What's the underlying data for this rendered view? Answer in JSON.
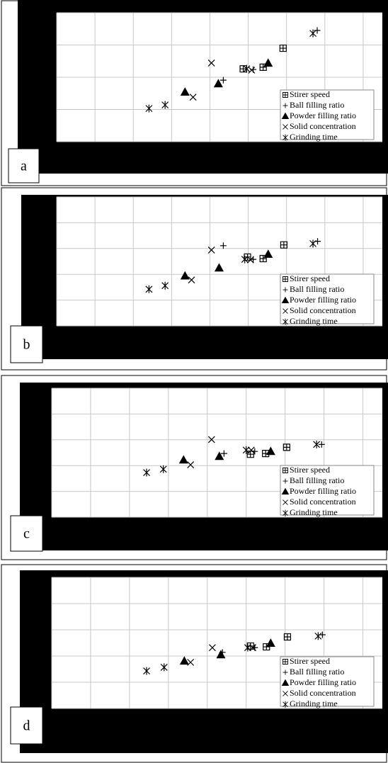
{
  "chart_data": [
    {
      "type": "scatter",
      "label": "a",
      "xlim": [
        0,
        8.5
      ],
      "ylim": [
        0,
        4
      ],
      "xticks": [
        0,
        1,
        2,
        3,
        4,
        5,
        6,
        7,
        8
      ],
      "yticks": [
        0,
        1,
        2,
        3,
        4
      ],
      "grid": true,
      "legend": "lower right",
      "series": [
        {
          "name": "Stirer speed",
          "marker": "square",
          "color": "#000000",
          "x": [
            4.87,
            5.39,
            5.91
          ],
          "values": [
            2.26,
            2.31,
            2.9
          ]
        },
        {
          "name": "Ball filling ratio",
          "marker": "plus",
          "color": "#000000",
          "x": [
            4.35,
            5.13,
            6.8
          ],
          "values": [
            1.91,
            2.24,
            3.45
          ]
        },
        {
          "name": "Powder filling ratio",
          "marker": "triangle",
          "color": "#000000",
          "x": [
            3.35,
            4.22,
            5.52
          ],
          "values": [
            1.54,
            1.8,
            2.44
          ]
        },
        {
          "name": "Solid concentration",
          "marker": "cross",
          "color": "#000000",
          "x": [
            3.56,
            4.04,
            5.09
          ],
          "values": [
            1.38,
            2.44,
            2.22
          ]
        },
        {
          "name": "Grinding time",
          "marker": "asterisk",
          "color": "#000000",
          "x": [
            2.41,
            2.83,
            4.96,
            6.69
          ],
          "values": [
            1.03,
            1.14,
            2.26,
            3.36
          ]
        }
      ]
    },
    {
      "type": "scatter",
      "label": "b",
      "xlim": [
        0,
        8.5
      ],
      "ylim": [
        0,
        5
      ],
      "xticks": [
        0,
        1,
        2,
        3,
        4,
        5,
        6,
        7,
        8
      ],
      "yticks": [
        0,
        1,
        2,
        3,
        4,
        5
      ],
      "grid": true,
      "legend": "lower right",
      "series": [
        {
          "name": "Stirer speed",
          "marker": "square",
          "color": "#000000",
          "x": [
            4.98,
            5.39,
            5.93
          ],
          "values": [
            2.67,
            2.61,
            3.14
          ]
        },
        {
          "name": "Ball filling ratio",
          "marker": "plus",
          "color": "#000000",
          "x": [
            4.35,
            5.13,
            6.81
          ],
          "values": [
            3.11,
            2.58,
            3.28
          ]
        },
        {
          "name": "Powder filling ratio",
          "marker": "triangle",
          "color": "#000000",
          "x": [
            3.35,
            4.24,
            5.52
          ],
          "values": [
            1.94,
            2.25,
            2.78
          ]
        },
        {
          "name": "Solid concentration",
          "marker": "cross",
          "color": "#000000",
          "x": [
            3.52,
            4.04,
            5.06
          ],
          "values": [
            1.78,
            2.94,
            2.56
          ]
        },
        {
          "name": "Grinding time",
          "marker": "asterisk",
          "color": "#000000",
          "x": [
            2.41,
            2.83,
            4.91,
            6.69
          ],
          "values": [
            1.42,
            1.56,
            2.58,
            3.19
          ]
        }
      ]
    },
    {
      "type": "scatter",
      "label": "c",
      "xlim": [
        0,
        8.5
      ],
      "ylim": [
        0,
        5
      ],
      "xticks": [
        0,
        1,
        2,
        3,
        4,
        5,
        6,
        7,
        8
      ],
      "yticks": [
        0,
        1,
        2,
        3,
        4,
        5
      ],
      "grid": true,
      "legend": "lower right",
      "series": [
        {
          "name": "Stirer speed",
          "marker": "square",
          "color": "#000000",
          "x": [
            5.11,
            5.5,
            6.04
          ],
          "values": [
            2.44,
            2.47,
            2.71
          ]
        },
        {
          "name": "Ball filling ratio",
          "marker": "plus",
          "color": "#000000",
          "x": [
            4.43,
            5.22,
            6.94
          ],
          "values": [
            2.47,
            2.55,
            2.82
          ]
        },
        {
          "name": "Powder filling ratio",
          "marker": "triangle",
          "color": "#000000",
          "x": [
            3.39,
            4.31,
            5.63
          ],
          "values": [
            2.22,
            2.36,
            2.55
          ]
        },
        {
          "name": "Solid concentration",
          "marker": "cross",
          "color": "#000000",
          "x": [
            3.57,
            4.11,
            5.13
          ],
          "values": [
            2.03,
            3.01,
            2.6
          ]
        },
        {
          "name": "Grinding time",
          "marker": "asterisk",
          "color": "#000000",
          "x": [
            2.44,
            2.87,
            5.0,
            6.81
          ],
          "values": [
            1.73,
            1.86,
            2.6,
            2.82
          ]
        }
      ]
    },
    {
      "type": "scatter",
      "label": "d",
      "xlim": [
        0,
        8.5
      ],
      "ylim": [
        0,
        5
      ],
      "xticks": [
        0,
        1,
        2,
        3,
        4,
        5,
        6,
        7,
        8
      ],
      "yticks": [
        0,
        1,
        2,
        3,
        4,
        5
      ],
      "grid": true,
      "legend": "lower right",
      "series": [
        {
          "name": "Stirer speed",
          "marker": "square",
          "color": "#000000",
          "x": [
            5.11,
            5.52,
            6.06
          ],
          "values": [
            2.38,
            2.35,
            2.73
          ]
        },
        {
          "name": "Ball filling ratio",
          "marker": "plus",
          "color": "#000000",
          "x": [
            4.39,
            5.22,
            6.96
          ],
          "values": [
            2.14,
            2.32,
            2.81
          ]
        },
        {
          "name": "Powder filling ratio",
          "marker": "triangle",
          "color": "#000000",
          "x": [
            3.41,
            4.35,
            5.63
          ],
          "values": [
            1.81,
            2.05,
            2.49
          ]
        },
        {
          "name": "Solid concentration",
          "marker": "cross",
          "color": "#000000",
          "x": [
            3.57,
            4.13,
            5.17
          ],
          "values": [
            1.76,
            2.32,
            2.32
          ]
        },
        {
          "name": "Grinding time",
          "marker": "asterisk",
          "color": "#000000",
          "x": [
            2.44,
            2.89,
            5.04,
            6.85
          ],
          "values": [
            1.43,
            1.57,
            2.32,
            2.76
          ]
        }
      ]
    }
  ]
}
